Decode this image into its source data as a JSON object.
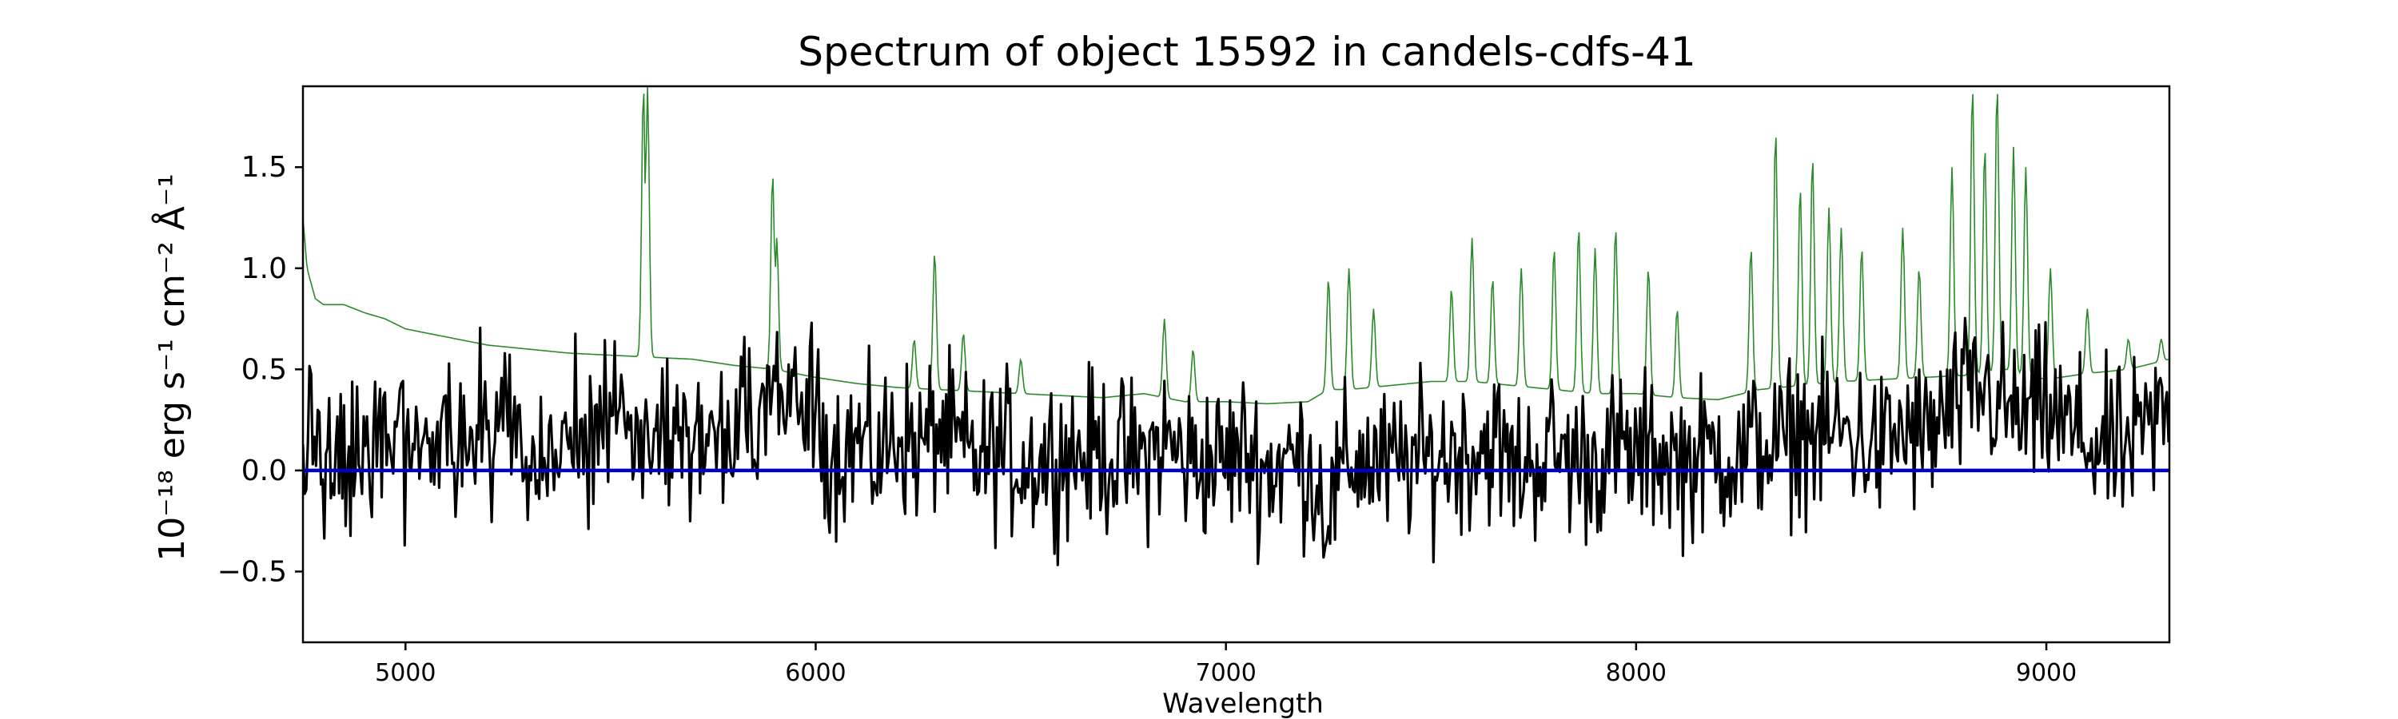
{
  "chart_data": {
    "type": "line",
    "title": "Spectrum of object 15592 in candels-cdfs-41",
    "xlabel": "Wavelength",
    "ylabel": "10⁻¹⁸ erg s⁻¹ cm⁻² Å⁻¹",
    "xlim": [
      4750,
      9300
    ],
    "ylim": [
      -0.85,
      1.9
    ],
    "x_ticks": [
      5000,
      6000,
      7000,
      8000,
      9000
    ],
    "x_tick_labels": [
      "5000",
      "6000",
      "7000",
      "8000",
      "9000"
    ],
    "y_ticks": [
      -0.5,
      0.0,
      0.5,
      1.0,
      1.5
    ],
    "y_tick_labels": [
      "−0.5",
      "0.0",
      "0.5",
      "1.0",
      "1.5"
    ],
    "grid": false,
    "series": [
      {
        "color": "#000000",
        "style": "thick noisy line (object spectrum)",
        "x": [
          4750,
          4800,
          4850,
          4900,
          4950,
          5000,
          5050,
          5100,
          5150,
          5200,
          5250,
          5300,
          5350,
          5400,
          5450,
          5500,
          5550,
          5600,
          5650,
          5700,
          5750,
          5800,
          5850,
          5900,
          5950,
          6000,
          6050,
          6100,
          6150,
          6200,
          6250,
          6300,
          6350,
          6400,
          6450,
          6500,
          6550,
          6600,
          6650,
          6700,
          6750,
          6800,
          6850,
          6900,
          6950,
          7000,
          7050,
          7100,
          7150,
          7200,
          7250,
          7300,
          7350,
          7400,
          7450,
          7500,
          7550,
          7600,
          7650,
          7700,
          7750,
          7800,
          7850,
          7900,
          7950,
          8000,
          8050,
          8100,
          8150,
          8200,
          8250,
          8300,
          8350,
          8400,
          8450,
          8500,
          8550,
          8600,
          8650,
          8700,
          8750,
          8800,
          8850,
          8900,
          8950,
          9000,
          9050,
          9100,
          9150,
          9200,
          9250,
          9300
        ],
        "y": [
          0.2,
          0.05,
          0.15,
          0.1,
          0.2,
          0.15,
          0.1,
          0.15,
          0.15,
          0.2,
          0.1,
          0.1,
          0.12,
          0.1,
          0.15,
          0.2,
          0.15,
          0.18,
          0.15,
          0.2,
          0.12,
          0.2,
          0.15,
          0.35,
          0.4,
          0.2,
          0.1,
          0.15,
          0.05,
          0.2,
          0.1,
          0.2,
          0.1,
          0.05,
          0.1,
          0.05,
          0.05,
          0.1,
          0.08,
          0.1,
          0.05,
          0.05,
          0.15,
          0.05,
          0.05,
          0.05,
          0.1,
          0.0,
          0.05,
          0.05,
          -0.2,
          0.05,
          0.05,
          0.0,
          0.05,
          0.05,
          0.1,
          0.1,
          0.15,
          0.0,
          0.05,
          0.1,
          0.05,
          0.05,
          0.1,
          0.05,
          0.1,
          0.05,
          0.05,
          0.1,
          0.05,
          0.15,
          0.1,
          0.2,
          0.15,
          0.2,
          0.15,
          0.1,
          0.2,
          0.15,
          0.25,
          0.35,
          0.4,
          0.3,
          0.25,
          0.3,
          0.2,
          0.15,
          0.1,
          0.1,
          0.2,
          0.3
        ],
        "noise_amplitude": 0.28
      },
      {
        "color": "#2a8a2a",
        "style": "thin line (model / contamination spectrum)",
        "x": [
          4750,
          4760,
          4780,
          4800,
          4850,
          4900,
          4950,
          5000,
          5100,
          5200,
          5300,
          5400,
          5500,
          5600,
          5700,
          5800,
          5900,
          6000,
          6100,
          6200,
          6300,
          6400,
          6500,
          6600,
          6700,
          6800,
          6900,
          7000,
          7100,
          7200,
          7250,
          7300,
          7400,
          7500,
          7600,
          7700,
          7800,
          7900,
          8000,
          8100,
          8200,
          8300,
          8400,
          8500,
          8600,
          8700,
          8800,
          8900,
          9000,
          9100,
          9200,
          9300
        ],
        "y": [
          1.25,
          1.0,
          0.85,
          0.82,
          0.82,
          0.78,
          0.75,
          0.7,
          0.66,
          0.62,
          0.6,
          0.58,
          0.57,
          0.56,
          0.55,
          0.52,
          0.5,
          0.46,
          0.43,
          0.41,
          0.4,
          0.39,
          0.38,
          0.37,
          0.36,
          0.38,
          0.34,
          0.34,
          0.33,
          0.34,
          0.4,
          0.4,
          0.42,
          0.44,
          0.44,
          0.42,
          0.4,
          0.38,
          0.38,
          0.36,
          0.35,
          0.4,
          0.42,
          0.44,
          0.45,
          0.46,
          0.47,
          0.5,
          0.45,
          0.48,
          0.5,
          0.55
        ],
        "peaks": [
          {
            "x": 5580,
            "y": 1.9
          },
          {
            "x": 5590,
            "y": 1.9
          },
          {
            "x": 5895,
            "y": 1.47
          },
          {
            "x": 5905,
            "y": 1.15
          },
          {
            "x": 6290,
            "y": 1.08
          },
          {
            "x": 6240,
            "y": 0.65
          },
          {
            "x": 6360,
            "y": 0.68
          },
          {
            "x": 6500,
            "y": 0.55
          },
          {
            "x": 6850,
            "y": 0.75
          },
          {
            "x": 6920,
            "y": 0.6
          },
          {
            "x": 7250,
            "y": 0.95
          },
          {
            "x": 7300,
            "y": 1.0
          },
          {
            "x": 7360,
            "y": 0.8
          },
          {
            "x": 7550,
            "y": 0.9
          },
          {
            "x": 7600,
            "y": 1.15
          },
          {
            "x": 7650,
            "y": 0.95
          },
          {
            "x": 7720,
            "y": 1.0
          },
          {
            "x": 7800,
            "y": 1.1
          },
          {
            "x": 7860,
            "y": 1.2
          },
          {
            "x": 7900,
            "y": 1.1
          },
          {
            "x": 7950,
            "y": 1.2
          },
          {
            "x": 8030,
            "y": 1.0
          },
          {
            "x": 8100,
            "y": 0.8
          },
          {
            "x": 8280,
            "y": 1.1
          },
          {
            "x": 8340,
            "y": 1.68
          },
          {
            "x": 8400,
            "y": 1.4
          },
          {
            "x": 8430,
            "y": 1.55
          },
          {
            "x": 8470,
            "y": 1.3
          },
          {
            "x": 8500,
            "y": 1.2
          },
          {
            "x": 8550,
            "y": 1.1
          },
          {
            "x": 8650,
            "y": 1.2
          },
          {
            "x": 8690,
            "y": 1.0
          },
          {
            "x": 8770,
            "y": 1.5
          },
          {
            "x": 8820,
            "y": 1.9
          },
          {
            "x": 8850,
            "y": 1.6
          },
          {
            "x": 8880,
            "y": 1.9
          },
          {
            "x": 8920,
            "y": 1.6
          },
          {
            "x": 8950,
            "y": 1.5
          },
          {
            "x": 9010,
            "y": 1.0
          },
          {
            "x": 9100,
            "y": 0.8
          },
          {
            "x": 9200,
            "y": 0.65
          },
          {
            "x": 9280,
            "y": 0.65
          }
        ]
      },
      {
        "color": "#0000cc",
        "style": "zero line",
        "x": [
          4750,
          9300
        ],
        "y": [
          0.0,
          0.0
        ]
      }
    ]
  }
}
